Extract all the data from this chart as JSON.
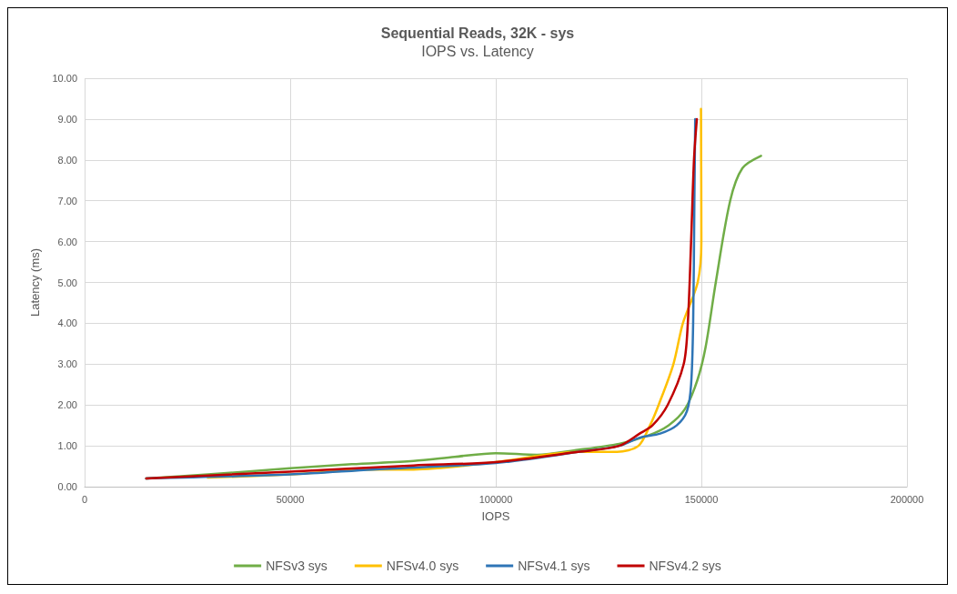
{
  "chart_data": {
    "type": "line",
    "title": "Sequential Reads, 32K - sys",
    "subtitle": "IOPS vs. Latency",
    "xlabel": "IOPS",
    "ylabel": "Latency (ms)",
    "xlim": [
      0,
      200000
    ],
    "xticks": [
      0,
      50000,
      100000,
      150000,
      200000
    ],
    "ylim": [
      0,
      10
    ],
    "yticks": [
      {
        "value": 0,
        "label": "0.00"
      },
      {
        "value": 1,
        "label": "1.00"
      },
      {
        "value": 2,
        "label": "2.00"
      },
      {
        "value": 3,
        "label": "3.00"
      },
      {
        "value": 4,
        "label": "4.00"
      },
      {
        "value": 5,
        "label": "5.00"
      },
      {
        "value": 6,
        "label": "6.00"
      },
      {
        "value": 7,
        "label": "7.00"
      },
      {
        "value": 8,
        "label": "8.00"
      },
      {
        "value": 9,
        "label": "9.00"
      },
      {
        "value": 10,
        "label": "10.00"
      }
    ],
    "grid": true,
    "legend": "bottom",
    "marker": "none",
    "line_style": "solid",
    "series": [
      {
        "name": "NFSv3 sys",
        "color": "#70ad47",
        "x": [
          15000,
          30000,
          50000,
          65000,
          80000,
          90000,
          100000,
          110000,
          120000,
          130000,
          137000,
          142000,
          146000,
          149000,
          151000,
          153500,
          157000,
          160000,
          164500
        ],
        "values": [
          0.2,
          0.3,
          0.45,
          0.55,
          0.63,
          0.73,
          0.82,
          0.78,
          0.9,
          1.05,
          1.25,
          1.5,
          1.9,
          2.6,
          3.4,
          5.0,
          7.0,
          7.8,
          8.1
        ]
      },
      {
        "name": "NFSv4.0 sys",
        "color": "#ffc000",
        "x": [
          30000,
          50000,
          70000,
          80000,
          100000,
          120000,
          129500,
          134700,
          137500,
          139600,
          143200,
          145500,
          149100,
          150000,
          149900
        ],
        "values": [
          0.22,
          0.3,
          0.42,
          0.42,
          0.6,
          0.85,
          0.85,
          1.0,
          1.5,
          2.0,
          3.0,
          4.0,
          5.0,
          6.0,
          9.25
        ]
      },
      {
        "name": "NFSv4.1 sys",
        "color": "#2e75b6",
        "x": [
          15000,
          50000,
          70000,
          100000,
          120000,
          130000,
          135000,
          140000,
          144000,
          146500,
          147500,
          148000,
          148300,
          148500
        ],
        "values": [
          0.2,
          0.3,
          0.42,
          0.58,
          0.85,
          1.0,
          1.2,
          1.3,
          1.5,
          1.85,
          2.5,
          4.0,
          7.0,
          9.0
        ]
      },
      {
        "name": "NFSv4.2 sys",
        "color": "#c00000",
        "x": [
          15000,
          50000,
          80000,
          100000,
          120000,
          130000,
          135000,
          138100,
          141800,
          145700,
          146700,
          147500,
          148200,
          148900
        ],
        "values": [
          0.2,
          0.37,
          0.52,
          0.6,
          0.85,
          1.0,
          1.3,
          1.5,
          2.0,
          3.0,
          4.0,
          6.0,
          8.0,
          9.0
        ]
      }
    ]
  }
}
